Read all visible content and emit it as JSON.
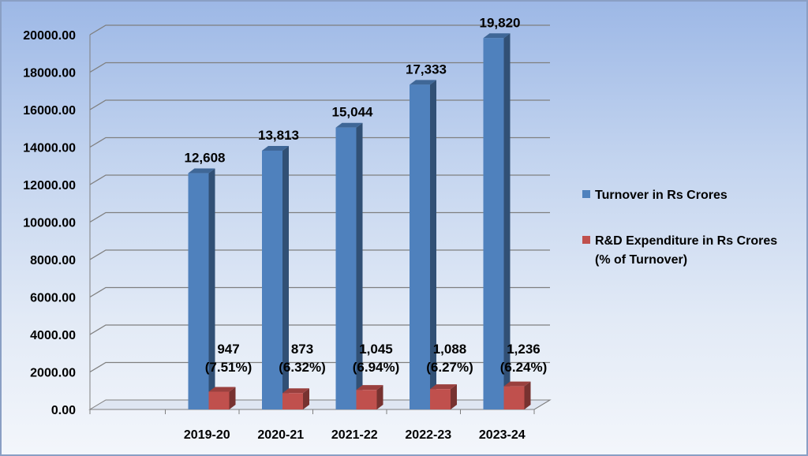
{
  "chart_data": {
    "type": "bar",
    "categories": [
      "2019-20",
      "2020-21",
      "2021-22",
      "2022-23",
      "2023-24"
    ],
    "series": [
      {
        "name": "Turnover in Rs Crores",
        "values": [
          12608,
          13813,
          15044,
          17333,
          19820
        ],
        "labels": [
          "12,608",
          "13,813",
          "15,044",
          "17,333",
          "19,820"
        ],
        "color": "#4f81bd"
      },
      {
        "name": "R&D Expenditure in Rs Crores",
        "name_line2": "(% of Turnover)",
        "values": [
          947,
          873,
          1045,
          1088,
          1236
        ],
        "labels": [
          "947",
          "873",
          "1,045",
          "1,088",
          "1,236"
        ],
        "sublabels": [
          "(7.51%)",
          "(6.32%)",
          "(6.94%)",
          "(6.27%)",
          "(6.24%)"
        ],
        "color": "#c0504d"
      }
    ],
    "ylim": [
      0,
      20000
    ],
    "yticks": [
      "0.00",
      "2000.00",
      "4000.00",
      "6000.00",
      "8000.00",
      "10000.00",
      "12000.00",
      "14000.00",
      "16000.00",
      "18000.00",
      "20000.00"
    ],
    "grid": true,
    "legend_position": "right"
  }
}
